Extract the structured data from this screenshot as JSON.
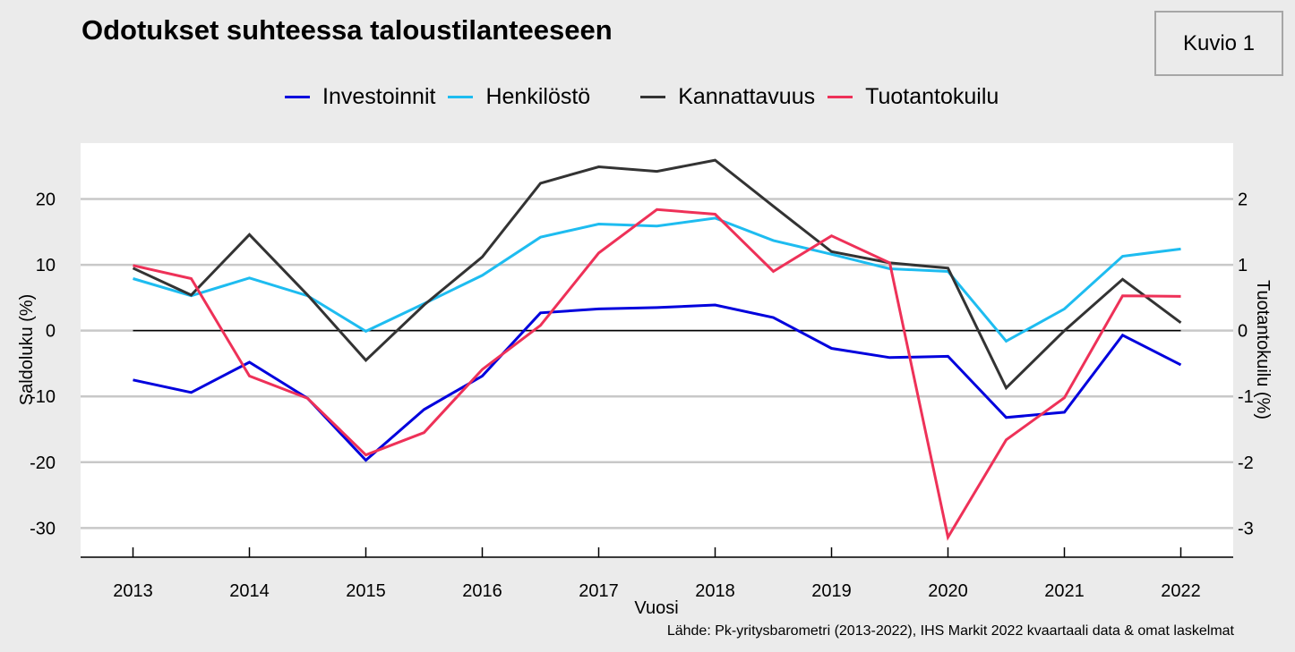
{
  "header": {
    "title": "Odotukset suhteessa taloustilanteeseen",
    "figure_label": "Kuvio 1"
  },
  "source_note": "Lähde: Pk-yritysbarometri (2013-2022), IHS Markit 2022 kvaartaali data & omat laskelmat",
  "chart_data": {
    "type": "line",
    "title": "Odotukset suhteessa taloustilanteeseen",
    "xlabel": "Vuosi",
    "ylabel": "Saldoluku (%)",
    "y2label": "Tuotantokuilu (%)",
    "x": [
      2013,
      2013.5,
      2014,
      2014.5,
      2015,
      2015.5,
      2016,
      2016.5,
      2017,
      2017.5,
      2018,
      2018.5,
      2019,
      2019.5,
      2020,
      2020.5,
      2021,
      2021.5,
      2022
    ],
    "xticks": [
      "2013",
      "2014",
      "2015",
      "2016",
      "2017",
      "2018",
      "2019",
      "2020",
      "2021",
      "2022"
    ],
    "xlim": [
      2012.55,
      2022.45
    ],
    "ylim": [
      -34.3,
      28.5
    ],
    "yticks": [
      "20",
      "10",
      "0",
      "-10",
      "-20",
      "-30"
    ],
    "y2lim": [
      -3.43,
      2.85
    ],
    "y2ticks": [
      "2",
      "1",
      "0",
      "-1",
      "-2",
      "-3"
    ],
    "grid": true,
    "zero_line": true,
    "legend_position": "top-center",
    "series": [
      {
        "name": "Investoinnit",
        "axis": "left",
        "color": "#0000dd",
        "values": [
          -7.5,
          -9.4,
          -4.8,
          -10.3,
          -19.7,
          -12.0,
          -6.9,
          2.7,
          3.3,
          3.5,
          3.9,
          2.0,
          -2.7,
          -4.1,
          -3.9,
          -13.2,
          -12.4,
          -0.7,
          -5.2
        ]
      },
      {
        "name": "Henkilöstö",
        "axis": "left",
        "color": "#1ebcf0",
        "values": [
          7.9,
          5.3,
          8.0,
          5.3,
          -0.1,
          4.1,
          8.4,
          14.2,
          16.2,
          15.9,
          17.1,
          13.7,
          11.6,
          9.4,
          9.0,
          -1.6,
          3.3,
          11.3,
          12.4
        ]
      },
      {
        "name": "Kannattavuus",
        "axis": "left",
        "color": "#333333",
        "values": [
          9.5,
          5.4,
          14.6,
          5.4,
          -4.5,
          3.9,
          11.2,
          22.4,
          24.9,
          24.2,
          25.9,
          18.9,
          12.0,
          10.3,
          9.5,
          -8.7,
          0.0,
          7.8,
          1.2
        ]
      },
      {
        "name": "Tuotantokuilu",
        "axis": "right",
        "color": "#ee3158",
        "values": [
          0.99,
          0.79,
          -0.69,
          -1.03,
          -1.89,
          -1.55,
          -0.59,
          0.08,
          1.18,
          1.84,
          1.77,
          0.9,
          1.44,
          1.03,
          -3.14,
          -1.66,
          -1.02,
          0.53,
          0.52
        ]
      }
    ]
  }
}
